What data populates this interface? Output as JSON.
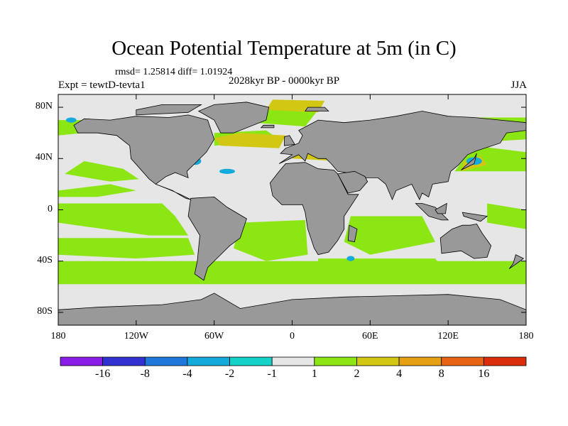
{
  "title": "Ocean Potential Temperature at 5m (in C)",
  "stats": "rmsd= 1.25814 diff= 1.01924",
  "period": "2028kyr BP - 0000kyr BP",
  "experiment": "Expt = tewtD-tevta1",
  "season": "JJA",
  "axes": {
    "x_ticks": [
      {
        "lon": -180,
        "label": "180"
      },
      {
        "lon": -120,
        "label": "120W"
      },
      {
        "lon": -60,
        "label": "60W"
      },
      {
        "lon": 0,
        "label": "0"
      },
      {
        "lon": 60,
        "label": "60E"
      },
      {
        "lon": 120,
        "label": "120E"
      },
      {
        "lon": 180,
        "label": "180"
      }
    ],
    "y_ticks": [
      {
        "lat": 80,
        "label": "80N"
      },
      {
        "lat": 40,
        "label": "40N"
      },
      {
        "lat": 0,
        "label": "0"
      },
      {
        "lat": -40,
        "label": "40S"
      },
      {
        "lat": -80,
        "label": "80S"
      }
    ],
    "lon_range": [
      -180,
      180
    ],
    "lat_range": [
      -90,
      90
    ]
  },
  "colorbar": {
    "labels": [
      "-16",
      "-8",
      "-4",
      "-2",
      "-1",
      "1",
      "2",
      "4",
      "8",
      "16"
    ],
    "colors": [
      "#8a1ee6",
      "#3232d2",
      "#1e78dc",
      "#14aadc",
      "#14d2c8",
      "#e6e6e6",
      "#8ce614",
      "#d2c814",
      "#e6a014",
      "#e66414",
      "#dc2d0a"
    ]
  },
  "colors": {
    "land": "#999999",
    "background_anomaly": "#e6e6e6",
    "warm1": "#8ce614",
    "warm2": "#d2c814",
    "cool1": "#14aadc"
  }
}
